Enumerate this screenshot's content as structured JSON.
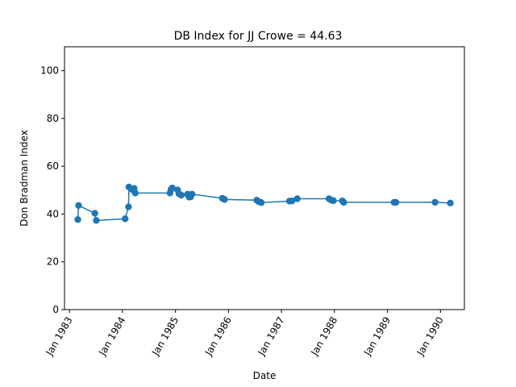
{
  "chart_data": {
    "type": "line",
    "title": "DB Index for JJ Crowe = 44.63",
    "xlabel": "Date",
    "ylabel": "Don Bradman Index",
    "xlim": [
      "1982-11-28",
      "1990-06-15"
    ],
    "ylim": [
      0,
      110
    ],
    "yticks": [
      0,
      20,
      40,
      60,
      80,
      100
    ],
    "xticks": [
      {
        "date": "1983-01-01",
        "label": "Jan 1983"
      },
      {
        "date": "1984-01-01",
        "label": "Jan 1984"
      },
      {
        "date": "1985-01-01",
        "label": "Jan 1985"
      },
      {
        "date": "1986-01-01",
        "label": "Jan 1986"
      },
      {
        "date": "1987-01-01",
        "label": "Jan 1987"
      },
      {
        "date": "1988-01-01",
        "label": "Jan 1988"
      },
      {
        "date": "1989-01-01",
        "label": "Jan 1989"
      },
      {
        "date": "1990-01-01",
        "label": "Jan 1990"
      }
    ],
    "grid": false,
    "series": [
      {
        "color": "#1f77b4",
        "marker": "circle",
        "points": [
          {
            "x": "1983-02-28",
            "y": 37.7
          },
          {
            "x": "1983-03-05",
            "y": 43.6
          },
          {
            "x": "1983-06-25",
            "y": 40.3
          },
          {
            "x": "1983-07-05",
            "y": 37.3
          },
          {
            "x": "1984-01-20",
            "y": 38.0
          },
          {
            "x": "1984-02-12",
            "y": 43.0
          },
          {
            "x": "1984-02-15",
            "y": 51.3
          },
          {
            "x": "1984-03-10",
            "y": 50.2
          },
          {
            "x": "1984-03-22",
            "y": 50.7
          },
          {
            "x": "1984-03-30",
            "y": 48.8
          },
          {
            "x": "1984-11-24",
            "y": 48.8
          },
          {
            "x": "1984-12-01",
            "y": 50.3
          },
          {
            "x": "1984-12-10",
            "y": 50.9
          },
          {
            "x": "1985-01-15",
            "y": 50.1
          },
          {
            "x": "1985-01-25",
            "y": 48.5
          },
          {
            "x": "1985-02-10",
            "y": 47.9
          },
          {
            "x": "1985-03-25",
            "y": 48.3
          },
          {
            "x": "1985-04-05",
            "y": 47.1
          },
          {
            "x": "1985-04-15",
            "y": 47.2
          },
          {
            "x": "1985-04-25",
            "y": 48.3
          },
          {
            "x": "1985-11-20",
            "y": 46.6
          },
          {
            "x": "1985-12-05",
            "y": 46.1
          },
          {
            "x": "1986-07-15",
            "y": 45.8
          },
          {
            "x": "1986-07-30",
            "y": 45.1
          },
          {
            "x": "1986-08-15",
            "y": 44.8
          },
          {
            "x": "1987-02-25",
            "y": 45.4
          },
          {
            "x": "1987-03-15",
            "y": 45.5
          },
          {
            "x": "1987-04-20",
            "y": 46.4
          },
          {
            "x": "1987-11-25",
            "y": 46.4
          },
          {
            "x": "1987-12-10",
            "y": 45.8
          },
          {
            "x": "1987-12-25",
            "y": 45.6
          },
          {
            "x": "1988-02-25",
            "y": 45.5
          },
          {
            "x": "1988-03-05",
            "y": 44.9
          },
          {
            "x": "1989-02-15",
            "y": 44.9
          },
          {
            "x": "1989-02-28",
            "y": 44.9
          },
          {
            "x": "1989-11-25",
            "y": 44.9
          },
          {
            "x": "1990-03-10",
            "y": 44.6
          }
        ]
      }
    ]
  }
}
